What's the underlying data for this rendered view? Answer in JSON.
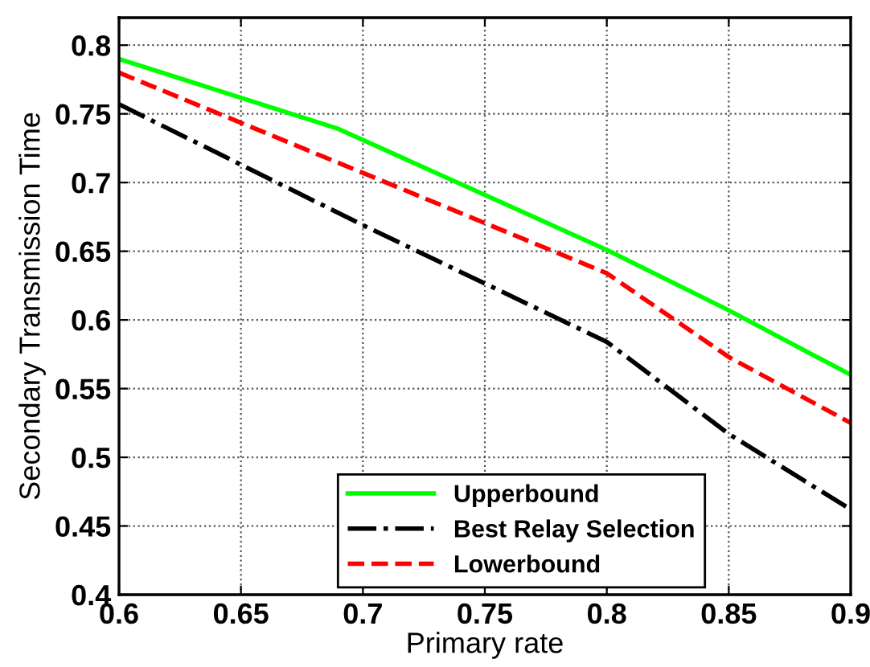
{
  "chart_data": {
    "type": "line",
    "xlabel": "Primary rate",
    "ylabel": "Secondary Transmission Time",
    "xlim": [
      0.6,
      0.9
    ],
    "ylim": [
      0.4,
      0.82
    ],
    "xticks": [
      0.6,
      0.65,
      0.7,
      0.75,
      0.8,
      0.85,
      0.9
    ],
    "yticks": [
      0.4,
      0.45,
      0.5,
      0.55,
      0.6,
      0.65,
      0.7,
      0.75,
      0.8
    ],
    "grid": true,
    "legend": "bottom",
    "series": [
      {
        "name": "Upperbound",
        "color": "#00ff00",
        "line_style": "solid",
        "x": [
          0.6,
          0.69,
          0.8,
          0.85,
          0.9
        ],
        "values": [
          0.79,
          0.739,
          0.651,
          0.607,
          0.56
        ]
      },
      {
        "name": "Best Relay Selection",
        "color": "#000000",
        "line_style": "dashdot",
        "x": [
          0.6,
          0.7,
          0.8,
          0.85,
          0.9
        ],
        "values": [
          0.757,
          0.669,
          0.584,
          0.517,
          0.462
        ]
      },
      {
        "name": "Lowerbound",
        "color": "#ff0000",
        "line_style": "dashed",
        "x": [
          0.6,
          0.7,
          0.8,
          0.85,
          0.9
        ],
        "values": [
          0.78,
          0.707,
          0.634,
          0.573,
          0.525
        ]
      }
    ]
  }
}
